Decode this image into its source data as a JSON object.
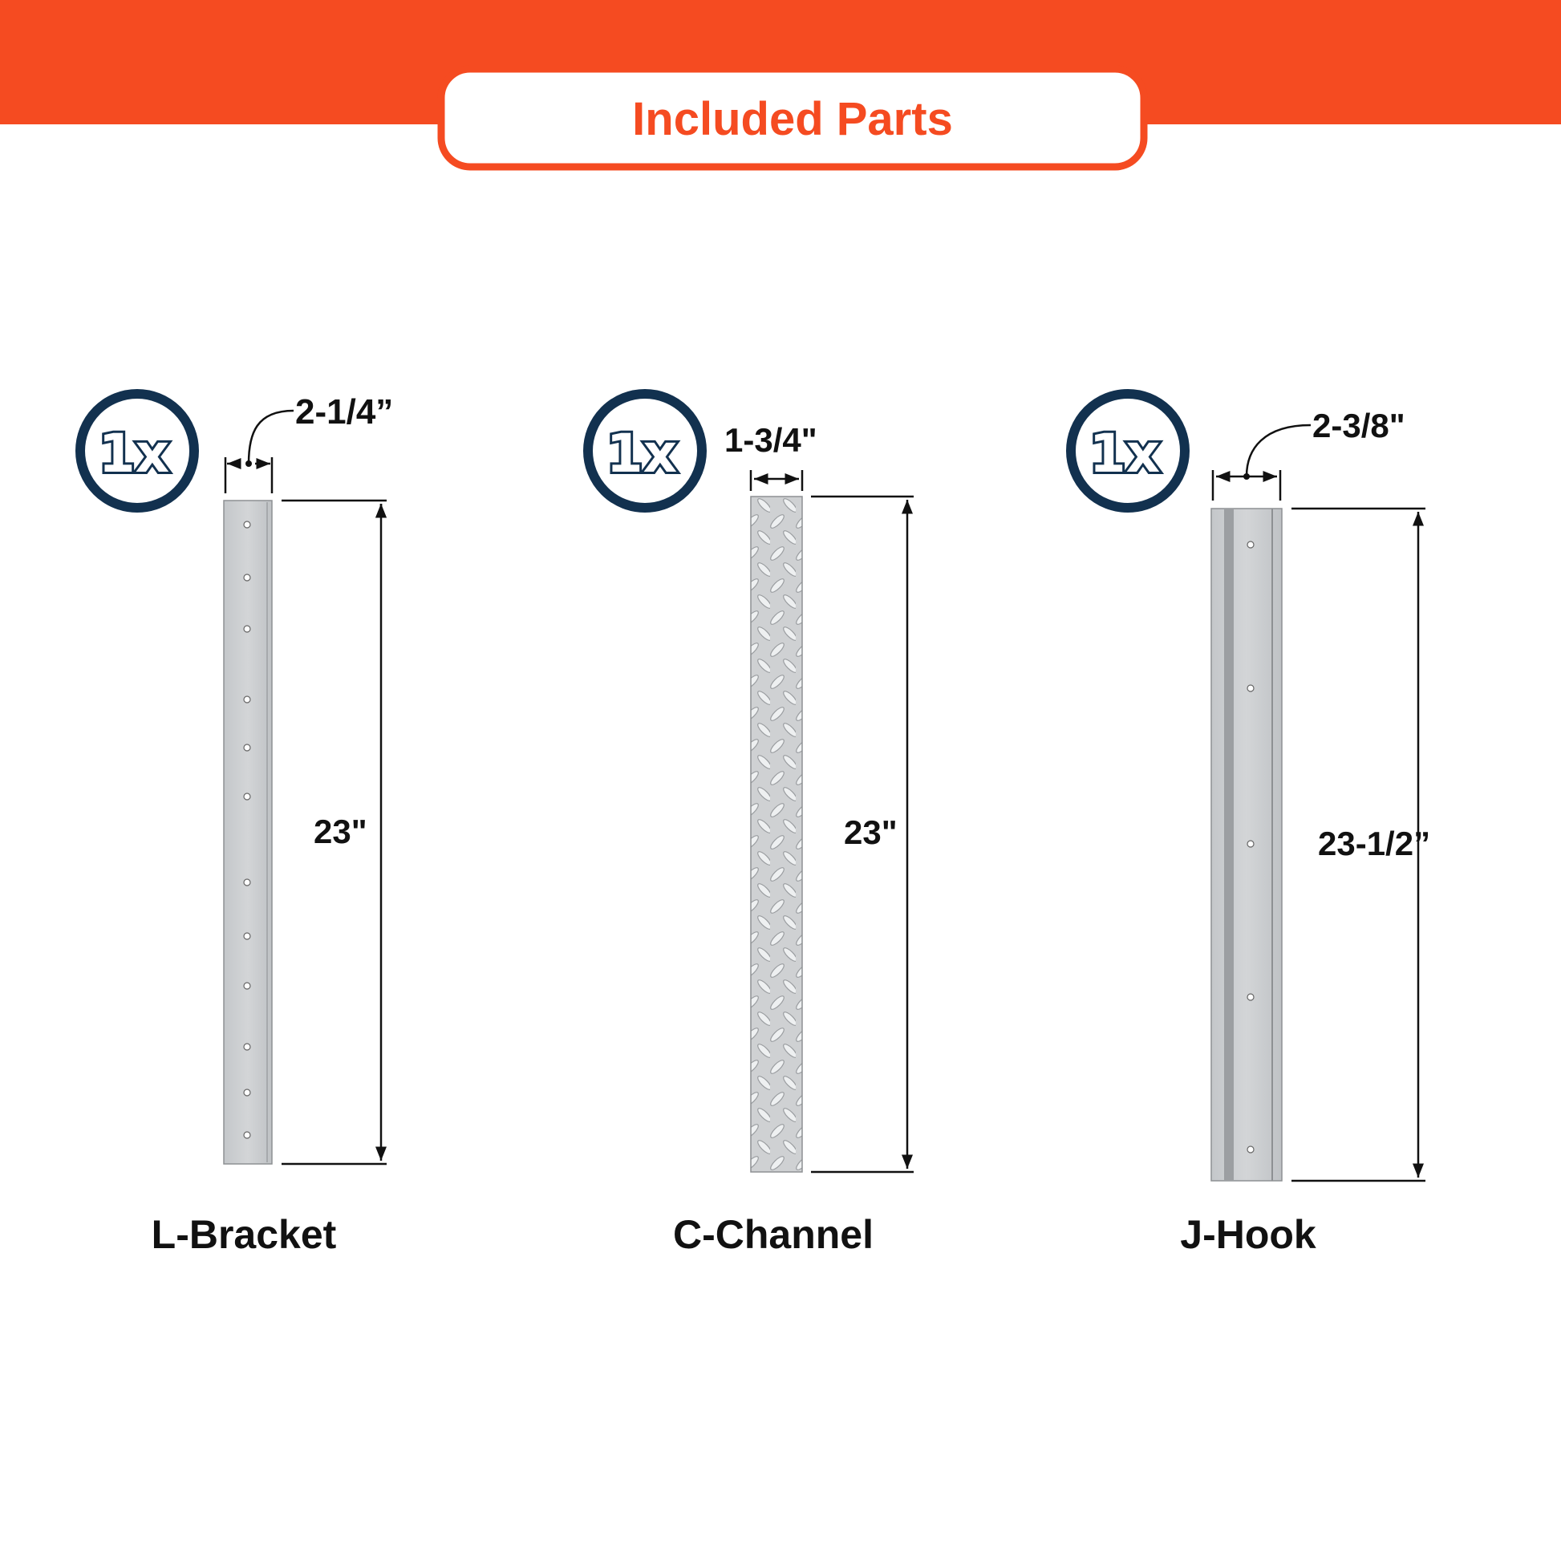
{
  "header": {
    "title": "Included Parts",
    "accent_color": "#F54B21"
  },
  "quantity_badge_color": "#12314F",
  "parts": [
    {
      "name": "L-Bracket",
      "quantity": "1x",
      "width": "2-1/4”",
      "length": "23\""
    },
    {
      "name": "C-Channel",
      "quantity": "1x",
      "width": "1-3/4\"",
      "length": "23\""
    },
    {
      "name": "J-Hook",
      "quantity": "1x",
      "width": "2-3/8\"",
      "length": "23-1/2”"
    }
  ]
}
